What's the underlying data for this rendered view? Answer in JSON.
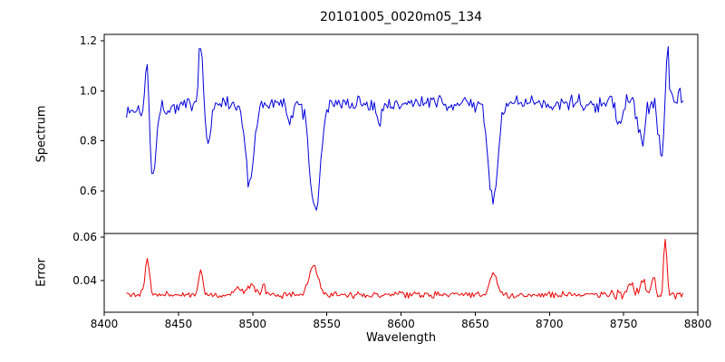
{
  "title": "20101005_0020m05_134",
  "xlabel": "Wavelength",
  "xlim": [
    8400,
    8800
  ],
  "xticks": [
    8400,
    8450,
    8500,
    8550,
    8600,
    8650,
    8700,
    8750,
    8800
  ],
  "xtick_labels": [
    "8400",
    "8450",
    "8500",
    "8550",
    "8600",
    "8650",
    "8700",
    "8750",
    "8800"
  ],
  "chart_data": [
    {
      "type": "line",
      "series_name": "spectrum",
      "color": "#0000dd",
      "ylabel": "Spectrum",
      "ylim": [
        0.43,
        1.225
      ],
      "yticks": [
        0.6,
        0.8,
        1.0,
        1.2
      ],
      "ytick_labels": [
        "0.6",
        "0.8",
        "1.0",
        "1.2"
      ],
      "x_range": [
        8415,
        8790
      ],
      "x_step": 1,
      "baseline": 0.95,
      "noise": 0.028,
      "edge_noise": {
        "from": 8740,
        "factor": 1.6
      },
      "seed": 1337,
      "features": [
        {
          "center": 8405,
          "width": 28,
          "amp": -0.035
        },
        {
          "center": 8429,
          "width": 1.2,
          "amp": 0.26
        },
        {
          "center": 8432.5,
          "width": 2.2,
          "amp": -0.26
        },
        {
          "center": 8465,
          "width": 1.3,
          "amp": 0.26
        },
        {
          "center": 8470,
          "width": 1.8,
          "amp": -0.15
        },
        {
          "center": 8498,
          "width": 2.8,
          "amp": -0.33
        },
        {
          "center": 8525,
          "width": 2.0,
          "amp": -0.08
        },
        {
          "center": 8542,
          "width": 3.5,
          "amp": -0.43
        },
        {
          "center": 8585,
          "width": 2.0,
          "amp": -0.07
        },
        {
          "center": 8662,
          "width": 3.2,
          "amp": -0.39
        },
        {
          "center": 8747,
          "width": 2.0,
          "amp": -0.12
        },
        {
          "center": 8762,
          "width": 1.8,
          "amp": -0.16
        },
        {
          "center": 8775.5,
          "width": 1.8,
          "amp": -0.22
        },
        {
          "center": 8779.5,
          "width": 1.2,
          "amp": 0.2
        }
      ]
    },
    {
      "type": "line",
      "series_name": "error",
      "color": "#ee0000",
      "ylabel": "Error",
      "ylim": [
        0.0255,
        0.0617
      ],
      "yticks": [
        0.04,
        0.06
      ],
      "ytick_labels": [
        "0.04",
        "0.06"
      ],
      "x_range": [
        8415,
        8790
      ],
      "x_step": 1,
      "baseline": 0.0335,
      "noise": 0.0013,
      "edge_noise": {
        "from": 8740,
        "factor": 1.5
      },
      "seed": 2024,
      "features": [
        {
          "center": 8429,
          "width": 1.5,
          "amp": 0.0165
        },
        {
          "center": 8465,
          "width": 1.5,
          "amp": 0.0105
        },
        {
          "center": 8490,
          "width": 2.5,
          "amp": 0.0035
        },
        {
          "center": 8499,
          "width": 2.0,
          "amp": 0.005
        },
        {
          "center": 8507,
          "width": 1.5,
          "amp": 0.004
        },
        {
          "center": 8541,
          "width": 3.0,
          "amp": 0.013
        },
        {
          "center": 8662,
          "width": 2.5,
          "amp": 0.01
        },
        {
          "center": 8755,
          "width": 2.0,
          "amp": 0.005
        },
        {
          "center": 8763,
          "width": 1.5,
          "amp": 0.0075
        },
        {
          "center": 8770,
          "width": 1.5,
          "amp": 0.008
        },
        {
          "center": 8778,
          "width": 1.0,
          "amp": 0.0265
        }
      ]
    }
  ]
}
